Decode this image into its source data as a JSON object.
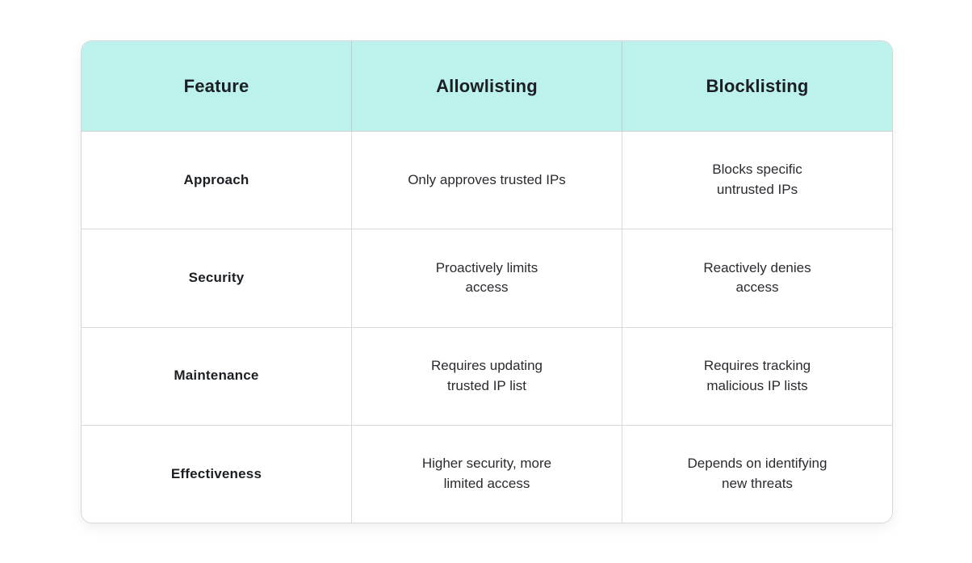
{
  "table": {
    "columns": [
      "Feature",
      "Allowlisting",
      "Blocklisting"
    ],
    "rows": [
      {
        "feature": "Approach",
        "allowlisting": "Only approves trusted IPs",
        "blocklisting": "Blocks specific\nuntrusted IPs"
      },
      {
        "feature": "Security",
        "allowlisting": "Proactively limits\naccess",
        "blocklisting": "Reactively denies\naccess"
      },
      {
        "feature": "Maintenance",
        "allowlisting": "Requires updating\ntrusted IP list",
        "blocklisting": "Requires tracking\nmalicious IP lists"
      },
      {
        "feature": "Effectiveness",
        "allowlisting": "Higher security, more\nlimited access",
        "blocklisting": "Depends on identifying\nnew threats"
      }
    ]
  },
  "colors": {
    "header_background": "#bdf2ec",
    "grid_border": "#d9d9dd",
    "header_text": "#1b1f24",
    "cell_text": "#2a2b31",
    "page_background": "#ffffff"
  }
}
